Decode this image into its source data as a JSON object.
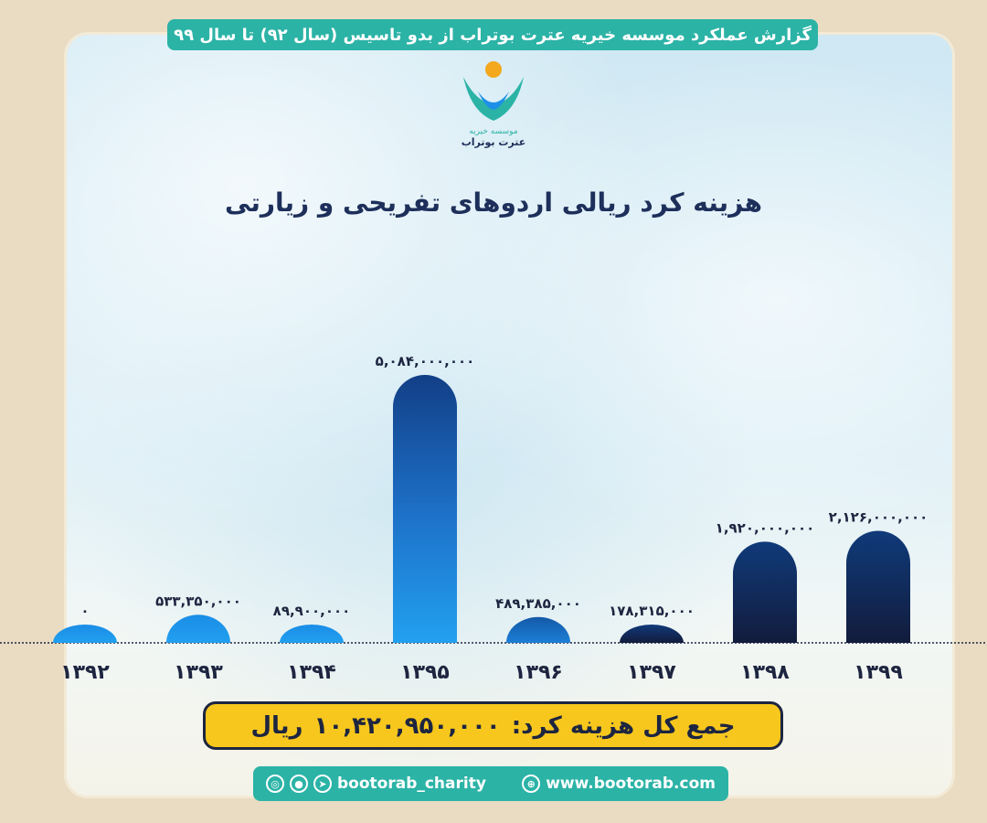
{
  "header": {
    "title": "گزارش عملکرد موسسه خیریه عترت بوتراب از بدو تاسیس (سال ۹۲) تا سال ۹۹"
  },
  "logo": {
    "name": "logo-icon",
    "text": "موسسه خیریه عترت بوتراب"
  },
  "chart_data": {
    "type": "bar",
    "title": "هزینه کرد ریالی اردوهای تفریحی و زیارتی",
    "categories": [
      "۱۳۹۲",
      "۱۳۹۳",
      "۱۳۹۴",
      "۱۳۹۵",
      "۱۳۹۶",
      "۱۳۹۷",
      "۱۳۹۸",
      "۱۳۹۹"
    ],
    "values": [
      0,
      533350000,
      89900000,
      5084000000,
      489385000,
      178315000,
      1920000000,
      2126000000
    ],
    "value_labels": [
      "۰",
      "۵۳۳,۳۵۰,۰۰۰",
      "۸۹,۹۰۰,۰۰۰",
      "۵,۰۸۴,۰۰۰,۰۰۰",
      "۴۸۹,۳۸۵,۰۰۰",
      "۱۷۸,۳۱۵,۰۰۰",
      "۱,۹۲۰,۰۰۰,۰۰۰",
      "۲,۱۲۶,۰۰۰,۰۰۰"
    ],
    "xlabel": "",
    "ylabel": "",
    "ylim": [
      0,
      5084000000
    ],
    "grid": false,
    "colors": {
      "light_blue": "#1e90e8",
      "mid_blue": "#1466b8",
      "dark_navy": "#142a5c",
      "label_color": "#1d2540"
    }
  },
  "total": {
    "label": "جمع کل هزینه کرد:",
    "value": "۱۰,۴۲۰,۹۵۰,۰۰۰",
    "unit": "ریال"
  },
  "footer": {
    "handle": "bootorab_charity",
    "website": "www.bootorab.com",
    "icons": [
      "instagram-icon",
      "bale-icon",
      "telegram-icon",
      "globe-icon"
    ]
  },
  "colors": {
    "teal": "#2bb3a6",
    "yellow": "#f7c71d",
    "navy": "#1d2540",
    "background": "#e9dcc3"
  }
}
